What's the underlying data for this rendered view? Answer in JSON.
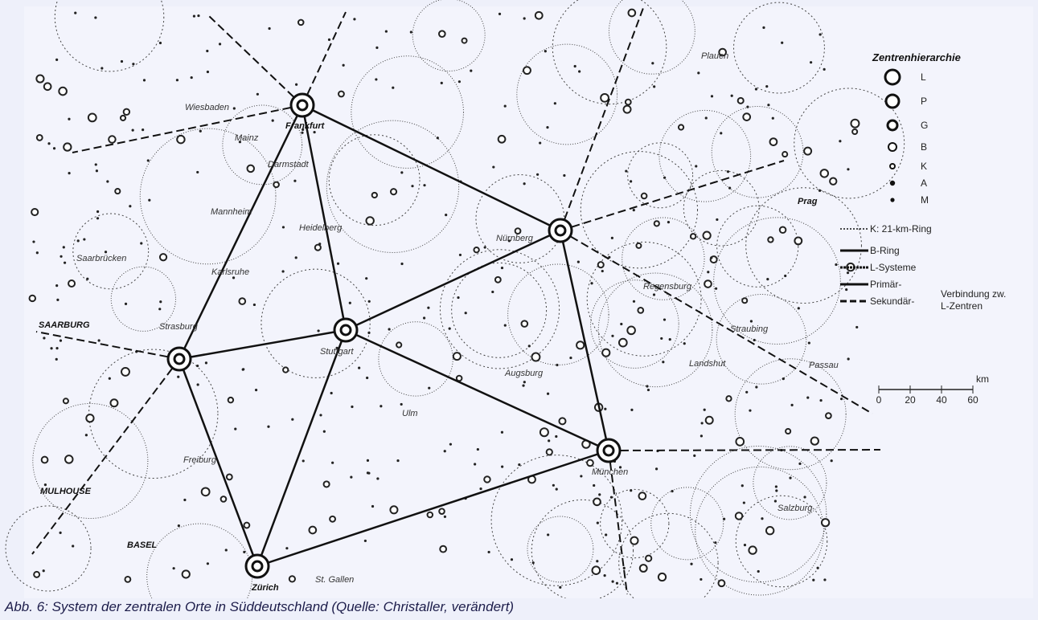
{
  "legend": {
    "title": "Zentrenhierarchie",
    "levels": [
      "L",
      "P",
      "G",
      "B",
      "K",
      "A",
      "M"
    ],
    "lines": [
      "K: 21-km-Ring",
      "B-Ring",
      "L-Systeme",
      "Primär-",
      "Sekundär-"
    ],
    "connection_note": [
      "Verbindung zw.",
      "L-Zentren"
    ]
  },
  "scale": {
    "unit": "km",
    "ticks": [
      "0",
      "20",
      "40",
      "60"
    ]
  },
  "cities": [
    "Plauen",
    "Frankfurt",
    "Wiesbaden",
    "Mainz",
    "Darmstadt",
    "Mannheim",
    "Heidelberg",
    "Saarbrücken",
    "Karlsruhe",
    "Nürnberg",
    "Prag",
    "Regensburg",
    "Straubing",
    "Passau",
    "Landshut",
    "SAARBURG",
    "Strasburg",
    "Stuttgart",
    "Augsburg",
    "Ulm",
    "München",
    "Freiburg",
    "Salzburg",
    "MULHOUSE",
    "BASEL",
    "Zürich",
    "St. Gallen"
  ],
  "caption": "Abb. 6: System der zentralen Orte in Süddeutschland (Quelle: Christaller, verändert)"
}
